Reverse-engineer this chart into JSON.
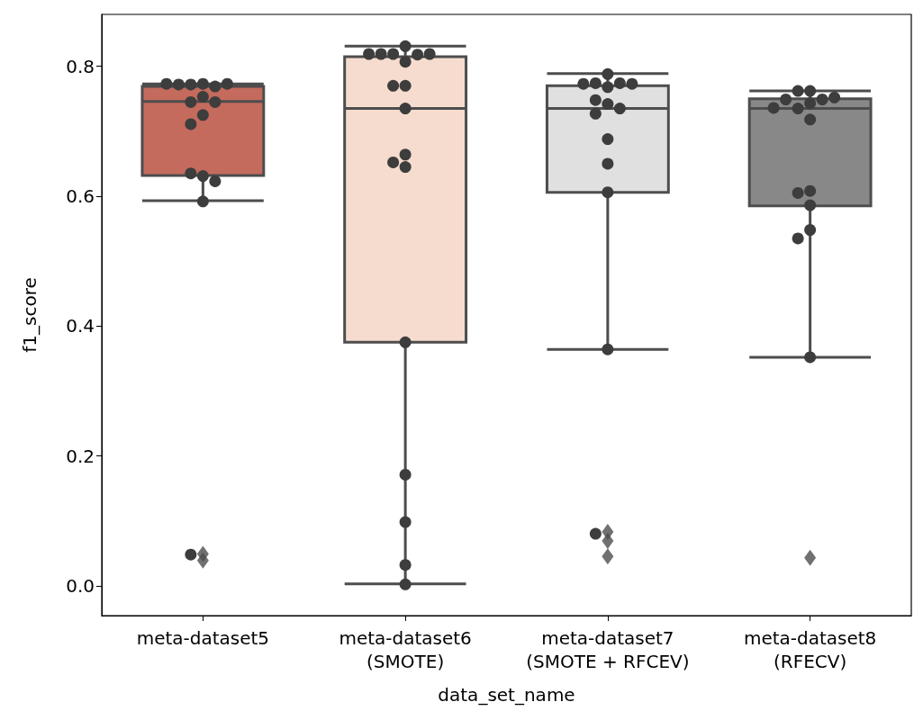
{
  "chart_data": {
    "type": "box",
    "categories": [
      "meta-dataset5",
      "meta-dataset6\n(SMOTE)",
      "meta-dataset7\n(SMOTE + RFCEV)",
      "meta-dataset8\n(RFECV)"
    ],
    "xlabel": "data_set_name",
    "ylabel": "f1_score",
    "ylim": [
      -0.046,
      0.88
    ],
    "yticks": [
      {
        "value": 0,
        "label": "0.0"
      },
      {
        "value": 0.2,
        "label": "0.2"
      },
      {
        "value": 0.4,
        "label": "0.4"
      },
      {
        "value": 0.6,
        "label": "0.6"
      },
      {
        "value": 0.8,
        "label": "0.8"
      }
    ],
    "grid": false,
    "series": [
      {
        "colors": [
          "#c46b5e",
          "#f6dccf",
          "#e0e0e0",
          "#888888"
        ],
        "marker": "diamond",
        "boxes": [
          {
            "low": 0.593,
            "q1": 0.632,
            "median": 0.746,
            "q3": 0.769,
            "high": 0.773,
            "outliers": [
              0.049,
              0.039
            ]
          },
          {
            "low": 0.003,
            "q1": 0.375,
            "median": 0.735,
            "q3": 0.815,
            "high": 0.831
          },
          {
            "low": 0.364,
            "q1": 0.606,
            "median": 0.735,
            "q3": 0.77,
            "high": 0.789,
            "outliers": [
              0.083,
              0.069,
              0.045
            ]
          },
          {
            "low": 0.352,
            "q1": 0.585,
            "median": 0.735,
            "q3": 0.75,
            "high": 0.762,
            "outliers": [
              0.043
            ]
          }
        ]
      },
      {
        "type": "scatter",
        "color": "#3d3d3d",
        "marker": "circle",
        "x": [
          "meta-dataset5",
          "meta-dataset5",
          "meta-dataset5",
          "meta-dataset5",
          "meta-dataset5",
          "meta-dataset5",
          "meta-dataset5",
          "meta-dataset5",
          "meta-dataset5",
          "meta-dataset5",
          "meta-dataset5",
          "meta-dataset5",
          "meta-dataset5",
          "meta-dataset5",
          "meta-dataset5",
          "meta-dataset5",
          "meta-dataset6\n(SMOTE)",
          "meta-dataset6\n(SMOTE)",
          "meta-dataset6\n(SMOTE)",
          "meta-dataset6\n(SMOTE)",
          "meta-dataset6\n(SMOTE)",
          "meta-dataset6\n(SMOTE)",
          "meta-dataset6\n(SMOTE)",
          "meta-dataset6\n(SMOTE)",
          "meta-dataset6\n(SMOTE)",
          "meta-dataset6\n(SMOTE)",
          "meta-dataset6\n(SMOTE)",
          "meta-dataset6\n(SMOTE)",
          "meta-dataset6\n(SMOTE)",
          "meta-dataset6\n(SMOTE)",
          "meta-dataset6\n(SMOTE)",
          "meta-dataset6\n(SMOTE)",
          "meta-dataset6\n(SMOTE)",
          "meta-dataset6\n(SMOTE)",
          "meta-dataset7\n(SMOTE + RFCEV)",
          "meta-dataset7\n(SMOTE + RFCEV)",
          "meta-dataset7\n(SMOTE + RFCEV)",
          "meta-dataset7\n(SMOTE + RFCEV)",
          "meta-dataset7\n(SMOTE + RFCEV)",
          "meta-dataset7\n(SMOTE + RFCEV)",
          "meta-dataset7\n(SMOTE + RFCEV)",
          "meta-dataset7\n(SMOTE + RFCEV)",
          "meta-dataset7\n(SMOTE + RFCEV)",
          "meta-dataset7\n(SMOTE + RFCEV)",
          "meta-dataset7\n(SMOTE + RFCEV)",
          "meta-dataset7\n(SMOTE + RFCEV)",
          "meta-dataset7\n(SMOTE + RFCEV)",
          "meta-dataset7\n(SMOTE + RFCEV)",
          "meta-dataset7\n(SMOTE + RFCEV)",
          "meta-dataset8\n(RFECV)",
          "meta-dataset8\n(RFECV)",
          "meta-dataset8\n(RFECV)",
          "meta-dataset8\n(RFECV)",
          "meta-dataset8\n(RFECV)",
          "meta-dataset8\n(RFECV)",
          "meta-dataset8\n(RFECV)",
          "meta-dataset8\n(RFECV)",
          "meta-dataset8\n(RFECV)",
          "meta-dataset8\n(RFECV)",
          "meta-dataset8\n(RFECV)",
          "meta-dataset8\n(RFECV)",
          "meta-dataset8\n(RFECV)",
          "meta-dataset8\n(RFECV)",
          "meta-dataset8\n(RFECV)"
        ],
        "values": [
          0.773,
          0.772,
          0.769,
          0.772,
          0.773,
          0.773,
          0.753,
          0.745,
          0.745,
          0.725,
          0.711,
          0.631,
          0.635,
          0.623,
          0.592,
          0.048,
          0.831,
          0.819,
          0.818,
          0.819,
          0.819,
          0.807,
          0.77,
          0.77,
          0.735,
          0.664,
          0.652,
          0.645,
          0.375,
          0.171,
          0.098,
          0.032,
          0.002,
          0.819,
          0.788,
          0.774,
          0.774,
          0.768,
          0.773,
          0.773,
          0.742,
          0.748,
          0.735,
          0.727,
          0.688,
          0.65,
          0.606,
          0.364,
          0.08,
          0.762,
          0.762,
          0.749,
          0.749,
          0.752,
          0.743,
          0.735,
          0.736,
          0.718,
          0.608,
          0.605,
          0.586,
          0.548,
          0.535,
          0.352
        ]
      }
    ]
  }
}
